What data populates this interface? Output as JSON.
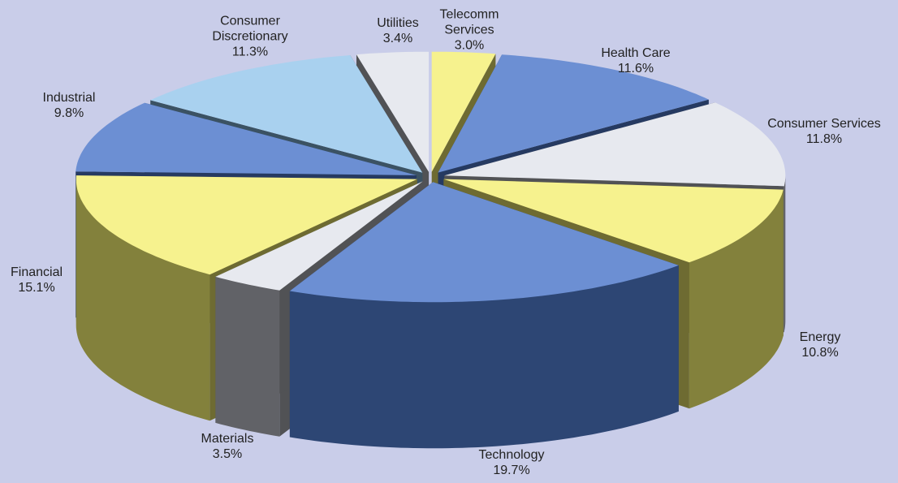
{
  "chart_data": {
    "type": "pie",
    "categories": [
      "Telecomm Services",
      "Health Care",
      "Consumer Services",
      "Energy",
      "Technology",
      "Materials",
      "Financial",
      "Industrial",
      "Consumer Discretionary",
      "Utilities"
    ],
    "values": [
      3.0,
      11.6,
      11.8,
      10.8,
      19.7,
      3.5,
      15.1,
      9.8,
      11.3,
      3.4
    ],
    "value_labels": [
      "3.0%",
      "11.6%",
      "11.8%",
      "10.8%",
      "19.7%",
      "3.5%",
      "15.1%",
      "9.8%",
      "11.3%",
      "3.4%"
    ],
    "colors": [
      "#f6f28e",
      "#6c8fd3",
      "#e7e9ef",
      "#f6f28e",
      "#6c8fd3",
      "#e7e9ef",
      "#f6f28e",
      "#6c8fd3",
      "#a9d1ef",
      "#e7e9ef"
    ]
  }
}
